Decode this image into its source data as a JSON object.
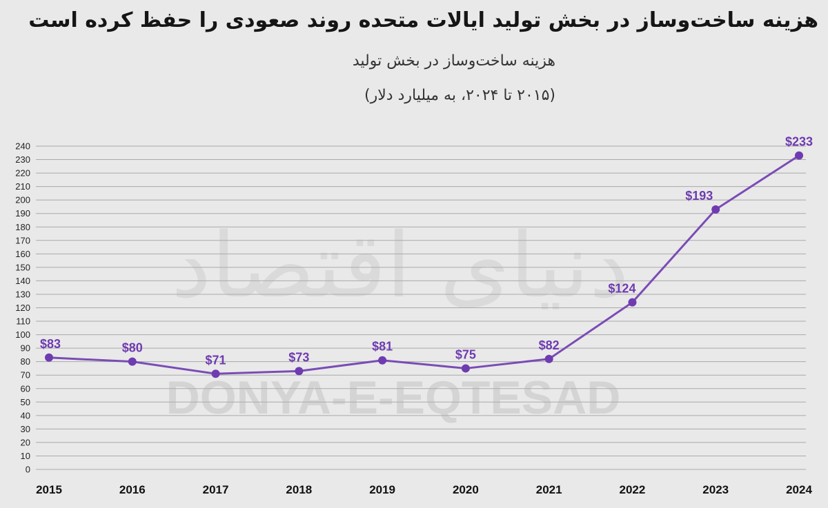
{
  "header": {
    "title": "هزینه ساخت‌وساز در بخش تولید ایالات متحده روند صعودی را حفظ کرده است",
    "subtitle": "هزینه ساخت‌وساز در بخش تولید",
    "subtitle2": "(۲۰۱۵ تا ۲۰۲۴، به میلیارد دلار)"
  },
  "watermark": {
    "latin": "DONYA-E-EQTESAD",
    "persian": "دنیای اقتصاد"
  },
  "colors": {
    "line": "#7a4cb5",
    "point": "#6f3bb0",
    "label": "#6f3bb0",
    "grid": "#a9a9a9",
    "background": "#e9e9e9"
  },
  "chart_data": {
    "type": "line",
    "categories": [
      "2015",
      "2016",
      "2017",
      "2018",
      "2019",
      "2020",
      "2021",
      "2022",
      "2023",
      "2024"
    ],
    "values": [
      83,
      80,
      71,
      73,
      81,
      75,
      82,
      124,
      193,
      233
    ],
    "data_labels": [
      "$83",
      "$80",
      "$71",
      "$73",
      "$81",
      "$75",
      "$82",
      "$124",
      "$193",
      "$233"
    ],
    "title": "هزینه ساخت‌وساز در بخش تولید",
    "ylim": [
      0,
      240
    ],
    "ytick_step": 10,
    "grid": true
  }
}
